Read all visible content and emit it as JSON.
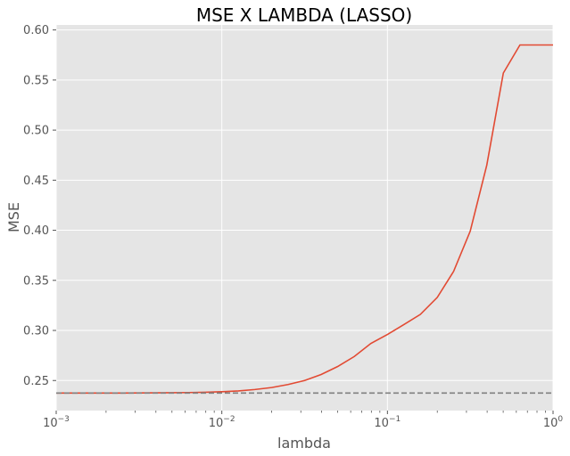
{
  "chart_data": {
    "type": "line",
    "title": "MSE X LAMBDA (LASSO)",
    "xlabel": "lambda",
    "ylabel": "MSE",
    "xscale": "log",
    "xlim": [
      0.001,
      1
    ],
    "ylim": [
      0.22,
      0.605
    ],
    "grid": true,
    "background": "#e5e5e5",
    "x_ticks": [
      0.001,
      0.01,
      0.1,
      1
    ],
    "x_tick_labels": [
      [
        "10",
        "−3"
      ],
      [
        "10",
        "−2"
      ],
      [
        "10",
        "−1"
      ],
      [
        "10",
        "0"
      ]
    ],
    "y_ticks": [
      0.25,
      0.3,
      0.35,
      0.4,
      0.45,
      0.5,
      0.55,
      0.6
    ],
    "y_tick_labels": [
      "0.25",
      "0.30",
      "0.35",
      "0.40",
      "0.45",
      "0.50",
      "0.55",
      "0.60"
    ],
    "series": [
      {
        "color": "#e24a33",
        "style": "solid",
        "x": [
          0.001,
          0.00126,
          0.00158,
          0.002,
          0.00251,
          0.00316,
          0.00398,
          0.00501,
          0.00631,
          0.00794,
          0.01,
          0.0126,
          0.0158,
          0.02,
          0.0251,
          0.0316,
          0.0398,
          0.0501,
          0.0631,
          0.0794,
          0.1,
          0.126,
          0.158,
          0.2,
          0.251,
          0.316,
          0.398,
          0.501,
          0.631,
          0.794,
          1.0
        ],
        "y": [
          0.2375,
          0.2375,
          0.2375,
          0.2375,
          0.2375,
          0.2376,
          0.2377,
          0.2378,
          0.238,
          0.2383,
          0.2388,
          0.2396,
          0.241,
          0.243,
          0.246,
          0.25,
          0.256,
          0.264,
          0.274,
          0.287,
          0.296,
          0.306,
          0.316,
          0.333,
          0.359,
          0.399,
          0.465,
          0.557,
          0.585,
          0.585,
          0.585
        ]
      },
      {
        "color": "#808080",
        "style": "dashed",
        "x": [
          0.001,
          1.0
        ],
        "y": [
          0.2375,
          0.2375
        ]
      }
    ]
  }
}
